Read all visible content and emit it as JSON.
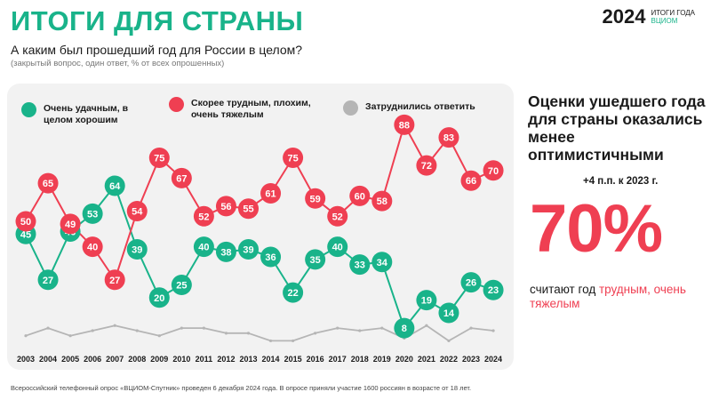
{
  "header": {
    "title": "ИТОГИ ДЛЯ СТРАНЫ",
    "brand_year": "2024",
    "brand_line1": "ИТОГИ ГОДА",
    "brand_line2": "ВЦИОМ"
  },
  "question": "А каким был прошедший год для России в целом?",
  "question_note": "(закрытый вопрос, один ответ, % от всех опрошенных)",
  "legend": {
    "good": "Очень удачным, в целом хорошим",
    "bad": "Скорее трудным, плохим, очень тяжелым",
    "dk": "Затруднились ответить"
  },
  "colors": {
    "green": "#19b38a",
    "red": "#ef3f52",
    "gray": "#b5b5b5",
    "panel": "#f2f2f2"
  },
  "side": {
    "heading": "Оценки ушедшего года для страны оказались менее оптимистичными",
    "delta": "+4 п.п. к 2023 г.",
    "big_value": "70%",
    "caption_plain": "считают год ",
    "caption_red": "трудным, очень тяжелым"
  },
  "footnote": "Всероссийский телефонный опрос «ВЦИОМ-Спутник» проведен 6 декабря 2024 года. В опросе приняли участие 1600 россиян в возрасте от 18 лет.",
  "chart_data": {
    "type": "line",
    "categories": [
      "2003",
      "2004",
      "2005",
      "2006",
      "2007",
      "2008",
      "2009",
      "2010",
      "2011",
      "2012",
      "2013",
      "2014",
      "2015",
      "2016",
      "2017",
      "2018",
      "2019",
      "2020",
      "2021",
      "2022",
      "2023",
      "2024"
    ],
    "series": [
      {
        "name": "Очень удачным, в целом хорошим",
        "color": "#19b38a",
        "values": [
          45,
          27,
          46,
          53,
          64,
          39,
          20,
          25,
          40,
          38,
          39,
          36,
          22,
          35,
          40,
          33,
          34,
          8,
          19,
          14,
          26,
          23
        ]
      },
      {
        "name": "Скорее трудным, плохим, очень тяжелым",
        "color": "#ef3f52",
        "values": [
          50,
          65,
          49,
          40,
          27,
          54,
          75,
          67,
          52,
          56,
          55,
          61,
          75,
          59,
          52,
          60,
          58,
          88,
          72,
          83,
          66,
          70
        ]
      },
      {
        "name": "Затруднились ответить",
        "color": "#b5b5b5",
        "values": [
          5,
          8,
          5,
          7,
          9,
          7,
          5,
          8,
          8,
          6,
          6,
          3,
          3,
          6,
          8,
          7,
          8,
          4,
          9,
          3,
          8,
          7
        ]
      }
    ],
    "ylim": [
      0,
      100
    ]
  }
}
